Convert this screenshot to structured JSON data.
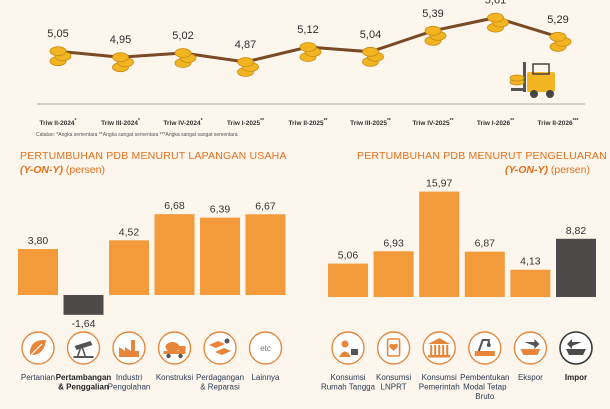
{
  "colors": {
    "background": "#fdf6ec",
    "accent": "#e46f1c",
    "bar_orange": "#f39a3b",
    "bar_dark": "#4f4a4a",
    "line_brown": "#7a4a25",
    "coin_gold": "#f2b421",
    "icon_border": "#e7863a",
    "label_blue": "#2a3a55"
  },
  "chart_data": [
    {
      "type": "line",
      "categories": [
        "Triw II-2024*",
        "Triw III-2024*",
        "Triw IV-2024*",
        "Triw I-2025**",
        "Triw II-2025**",
        "Triw III-2025**",
        "Triw IV-2025**",
        "Triw I-2026**",
        "Triw II-2026***"
      ],
      "values": [
        5.05,
        4.95,
        5.02,
        4.87,
        5.12,
        5.04,
        5.39,
        5.61,
        5.29
      ],
      "data_labels": [
        "5,05",
        "4,95",
        "5,02",
        "4,87",
        "5,12",
        "5,04",
        "5,39",
        "5,61",
        "5,29"
      ],
      "footnote": "Catatan: *Angka sementara      **Angka sangat sementara      ***Angka sangat sangat sementara",
      "grid": false
    },
    {
      "type": "bar",
      "title": "PERTUMBUHAN PDB MENURUT LAPANGAN USAHA",
      "subtitle_italic": "(Y-ON-Y)",
      "subtitle_rest": " (persen)",
      "categories": [
        "Pertanian",
        "Pertambangan & Penggalian",
        "Industri Pengolahan",
        "Konstruksi",
        "Perdagangan & Reparasi",
        "Lainnya"
      ],
      "values": [
        3.8,
        -1.64,
        4.52,
        6.68,
        6.39,
        6.67
      ],
      "data_labels": [
        "3,80",
        "-1,64",
        "4,52",
        "6,68",
        "6,39",
        "6,67"
      ],
      "bar_colors": [
        "#f39a3b",
        "#4f4a4a",
        "#f39a3b",
        "#f39a3b",
        "#f39a3b",
        "#f39a3b"
      ],
      "icons": [
        "leaf-icon",
        "oil-pump-icon",
        "factory-icon",
        "mixer-truck-icon",
        "trade-hands-icon",
        "etc-icon"
      ],
      "icon_text": [
        "",
        "",
        "",
        "",
        "",
        "etc"
      ],
      "ylim": [
        -2,
        7.5
      ],
      "grid": false
    },
    {
      "type": "bar",
      "title": "PERTUMBUHAN PDB MENURUT PENGELUARAN",
      "subtitle_italic": "(Y-ON-Y)",
      "subtitle_rest": " (persen)",
      "categories": [
        "Konsumsi Rumah Tangga",
        "Konsumsi LNPRT",
        "Konsumsi Pemerintah",
        "Pembentukan Modal Tetap Bruto",
        "Ekspor",
        "Impor"
      ],
      "values": [
        5.06,
        6.93,
        15.97,
        6.87,
        4.13,
        8.82
      ],
      "data_labels": [
        "5,06",
        "6,93",
        "15,97",
        "6,87",
        "4,13",
        "8,82"
      ],
      "bar_colors": [
        "#f39a3b",
        "#f39a3b",
        "#f39a3b",
        "#f39a3b",
        "#f39a3b",
        "#4f4a4a"
      ],
      "icons": [
        "household-icon",
        "nonprofit-icon",
        "government-building-icon",
        "capital-machinery-icon",
        "export-ship-icon",
        "import-ship-icon"
      ],
      "icon_text": [
        "",
        "",
        "",
        "",
        "",
        ""
      ],
      "ylim": [
        0,
        17
      ],
      "grid": false
    }
  ]
}
